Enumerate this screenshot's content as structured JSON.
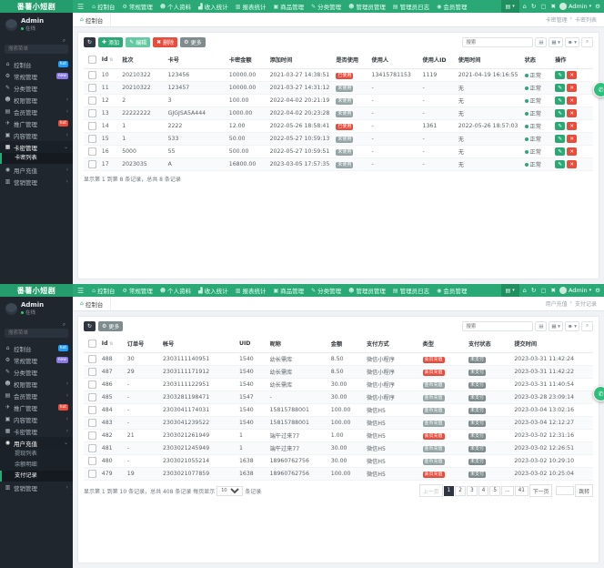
{
  "theme": {
    "primary": "#2aa876",
    "primary_dark": "#249c6c",
    "sidebar_bg": "#20262e",
    "danger": "#e74c3c",
    "muted_badge": "#95a5a6",
    "pager_active": "#2f3542"
  },
  "screens": [
    {
      "logo": "番薯小短剧",
      "float_icon": "✆",
      "navbar": {
        "menu_icon": "☰",
        "items": [
          {
            "name": "dashboard",
            "icon": "⌂",
            "label": "控制台"
          },
          {
            "name": "general",
            "icon": "⚙",
            "label": "常规管理"
          },
          {
            "name": "profile",
            "icon": "☻",
            "label": "个人资料"
          },
          {
            "name": "income",
            "icon": "▟",
            "label": "收入统计"
          },
          {
            "name": "report",
            "icon": "▥",
            "label": "报表统计"
          },
          {
            "name": "goods",
            "icon": "▣",
            "label": "商品管理"
          },
          {
            "name": "category",
            "icon": "✎",
            "label": "分类管理"
          },
          {
            "name": "admins",
            "icon": "☻",
            "label": "管理员管理"
          },
          {
            "name": "admin-log",
            "icon": "▤",
            "label": "管理员日志"
          },
          {
            "name": "members",
            "icon": "◉",
            "label": "会员管理"
          }
        ],
        "right": {
          "dropdown_icon": "▤",
          "icons": [
            {
              "name": "home",
              "glyph": "⌂"
            },
            {
              "name": "refresh",
              "glyph": "↻"
            },
            {
              "name": "fullscreen",
              "glyph": "▢"
            },
            {
              "name": "close",
              "glyph": "✖"
            }
          ],
          "user_name": "Admin",
          "settings_icon": "⚙"
        }
      },
      "sidebar": {
        "user": {
          "name": "Admin",
          "status": "在线"
        },
        "search_placeholder": "搜索菜单",
        "search_icon": "⌕",
        "items": [
          {
            "name": "dashboard",
            "icon": "⌂",
            "label": "控制台",
            "badge": "hot",
            "badge_color": "#1e9fff"
          },
          {
            "name": "general",
            "icon": "⚙",
            "label": "常规管理",
            "badge": "new",
            "badge_color": "#8c7ae6"
          },
          {
            "name": "category",
            "icon": "✎",
            "label": "分类管理"
          },
          {
            "name": "auth",
            "icon": "☻",
            "label": "权限管理",
            "chevron": true
          },
          {
            "name": "member",
            "icon": "▤",
            "label": "会员管理",
            "chevron": true
          },
          {
            "name": "promotion",
            "icon": "✈",
            "label": "推广管理",
            "badge": "hot",
            "badge_color": "#e74c3c"
          },
          {
            "name": "content",
            "icon": "▣",
            "label": "内容管理",
            "chevron": true
          },
          {
            "name": "cardkey",
            "icon": "▦",
            "label": "卡密管理",
            "chevron": true,
            "expanded": true,
            "active": true,
            "children": [
              {
                "name": "cardkey-list",
                "label": "卡密列表",
                "active": true
              }
            ]
          },
          {
            "name": "recharge",
            "icon": "◉",
            "label": "用户充值",
            "chevron": true
          },
          {
            "name": "marketing",
            "icon": "▥",
            "label": "营销管理",
            "chevron": true
          }
        ]
      },
      "tabbar": {
        "tab_icon": "⌂",
        "tab": "控制台",
        "breadcrumb": [
          "卡密管理",
          "卡密列表"
        ]
      },
      "toolbar": [
        {
          "name": "refresh",
          "icon": "↻",
          "bg": "#2f3640"
        },
        {
          "name": "add",
          "icon": "✚",
          "label": "添加",
          "bg": "#2aa876"
        },
        {
          "name": "edit",
          "icon": "✎",
          "label": "编辑",
          "bg": "#62c9a3"
        },
        {
          "name": "delete",
          "icon": "✖",
          "label": "删除",
          "bg": "#e74c3c"
        },
        {
          "name": "more",
          "icon": "⚙",
          "label": "更多",
          "bg": "#7f8c8d"
        }
      ],
      "search": {
        "placeholder": "搜索",
        "tools": [
          {
            "name": "export",
            "glyph": "▤"
          },
          {
            "name": "columns",
            "glyph": "▦ ▾"
          },
          {
            "name": "filter",
            "glyph": "☻ ▾"
          },
          {
            "name": "search",
            "glyph": "⌕"
          }
        ]
      },
      "table": {
        "actions": {
          "edit_icon": "✎",
          "delete_icon": "✕",
          "edit_color": "#2aa876",
          "delete_color": "#e74c3c"
        },
        "status_text": "正常",
        "columns": [
          {
            "key": "id",
            "label": "Id",
            "w": "4%",
            "sort": true
          },
          {
            "key": "batch",
            "label": "批次",
            "w": "9%"
          },
          {
            "key": "card_no",
            "label": "卡号",
            "w": "12%"
          },
          {
            "key": "amount",
            "label": "卡密金额",
            "w": "8%"
          },
          {
            "key": "created",
            "label": "添加时间",
            "w": "13%"
          },
          {
            "key": "used",
            "label": "是否使用",
            "type": "badge",
            "colors": {
              "已使用": "#e74c3c",
              "未使用": "#95a5a6"
            },
            "w": "7%"
          },
          {
            "key": "user",
            "label": "使用人",
            "w": "10%"
          },
          {
            "key": "user_id",
            "label": "使用人ID",
            "w": "7%"
          },
          {
            "key": "used_time",
            "label": "使用时间",
            "w": "13%"
          },
          {
            "key": "status",
            "label": "状态",
            "type": "status",
            "w": "6%"
          },
          {
            "key": "actions",
            "label": "操作",
            "type": "actions",
            "w": "8%"
          }
        ],
        "rows": [
          {
            "id": "10",
            "batch": "20210322",
            "card_no": "123456",
            "amount": "10000.00",
            "created": "2021-03-27 14:38:51",
            "used": "已使用",
            "user": "13415781153",
            "user_id": "1119",
            "used_time": "2021-04-19 16:16:55",
            "status": "正常"
          },
          {
            "id": "11",
            "batch": "20210322",
            "card_no": "123457",
            "amount": "10000.00",
            "created": "2021-03-27 14:31:12",
            "used": "未使用",
            "user": "-",
            "user_id": "-",
            "used_time": "无",
            "status": "正常"
          },
          {
            "id": "12",
            "batch": "2",
            "card_no": "3",
            "amount": "100.00",
            "created": "2022-04-02 20:21:19",
            "used": "未使用",
            "user": "-",
            "user_id": "-",
            "used_time": "无",
            "status": "正常"
          },
          {
            "id": "13",
            "batch": "22222222",
            "card_no": "GJGJSA5A444",
            "amount": "1000.00",
            "created": "2022-04-02 20:23:28",
            "used": "未使用",
            "user": "-",
            "user_id": "-",
            "used_time": "无",
            "status": "正常"
          },
          {
            "id": "14",
            "batch": "1",
            "card_no": "2222",
            "amount": "12.00",
            "created": "2022-05-26 18:58:41",
            "used": "已使用",
            "user": "-",
            "user_id": "1361",
            "used_time": "2022-05-26 18:57:03",
            "status": "正常"
          },
          {
            "id": "15",
            "batch": "1",
            "card_no": "533",
            "amount": "50.00",
            "created": "2022-05-27 10:59:13",
            "used": "未使用",
            "user": "-",
            "user_id": "-",
            "used_time": "无",
            "status": "正常"
          },
          {
            "id": "16",
            "batch": "5000",
            "card_no": "55",
            "amount": "500.00",
            "created": "2022-05-27 10:59:51",
            "used": "未使用",
            "user": "-",
            "user_id": "-",
            "used_time": "无",
            "status": "正常"
          },
          {
            "id": "17",
            "batch": "2023035",
            "card_no": "A",
            "amount": "16800.00",
            "created": "2023-03-05 17:57:35",
            "used": "未使用",
            "user": "-",
            "user_id": "-",
            "used_time": "无",
            "status": "正常"
          }
        ]
      },
      "footer": {
        "summary": "显示第 1 到第 8 条记录，总共 8 条记录"
      },
      "pagination": null
    },
    {
      "logo": "番薯小短剧",
      "float_icon": "✆",
      "navbar": {
        "menu_icon": "☰",
        "items": [
          {
            "name": "dashboard",
            "icon": "⌂",
            "label": "控制台"
          },
          {
            "name": "general",
            "icon": "⚙",
            "label": "常规管理"
          },
          {
            "name": "profile",
            "icon": "☻",
            "label": "个人资料"
          },
          {
            "name": "income",
            "icon": "▟",
            "label": "收入统计"
          },
          {
            "name": "report",
            "icon": "▥",
            "label": "报表统计"
          },
          {
            "name": "goods",
            "icon": "▣",
            "label": "商品管理"
          },
          {
            "name": "category",
            "icon": "✎",
            "label": "分类管理"
          },
          {
            "name": "admins",
            "icon": "☻",
            "label": "管理员管理"
          },
          {
            "name": "admin-log",
            "icon": "▤",
            "label": "管理员日志"
          },
          {
            "name": "members",
            "icon": "◉",
            "label": "会员管理"
          }
        ],
        "right": {
          "dropdown_icon": "▤",
          "icons": [
            {
              "name": "home",
              "glyph": "⌂"
            },
            {
              "name": "refresh",
              "glyph": "↻"
            },
            {
              "name": "fullscreen",
              "glyph": "▢"
            },
            {
              "name": "close",
              "glyph": "✖"
            }
          ],
          "user_name": "Admin",
          "settings_icon": "⚙"
        }
      },
      "sidebar": {
        "user": {
          "name": "Admin",
          "status": "在线"
        },
        "search_placeholder": "搜索菜单",
        "search_icon": "⌕",
        "items": [
          {
            "name": "dashboard",
            "icon": "⌂",
            "label": "控制台",
            "badge": "hot",
            "badge_color": "#1e9fff"
          },
          {
            "name": "general",
            "icon": "⚙",
            "label": "常规管理",
            "badge": "new",
            "badge_color": "#8c7ae6"
          },
          {
            "name": "category",
            "icon": "✎",
            "label": "分类管理"
          },
          {
            "name": "auth",
            "icon": "☻",
            "label": "权限管理",
            "chevron": true
          },
          {
            "name": "member",
            "icon": "▤",
            "label": "会员管理",
            "chevron": true
          },
          {
            "name": "promotion",
            "icon": "✈",
            "label": "推广管理",
            "badge": "hot",
            "badge_color": "#e74c3c"
          },
          {
            "name": "content",
            "icon": "▣",
            "label": "内容管理",
            "chevron": true
          },
          {
            "name": "cardkey",
            "icon": "▦",
            "label": "卡密管理",
            "chevron": true
          },
          {
            "name": "recharge",
            "icon": "◉",
            "label": "用户充值",
            "chevron": true,
            "expanded": true,
            "active": true,
            "children": [
              {
                "name": "withdraw-list",
                "label": "提现列表"
              },
              {
                "name": "balance-detail",
                "label": "余额明细"
              },
              {
                "name": "pay-records",
                "label": "支付记录",
                "active": true
              }
            ]
          },
          {
            "name": "marketing",
            "icon": "▥",
            "label": "营销管理",
            "chevron": true
          }
        ]
      },
      "tabbar": {
        "tab_icon": "⌂",
        "tab": "控制台",
        "breadcrumb": [
          "用户充值",
          "支付记录"
        ]
      },
      "toolbar": [
        {
          "name": "refresh",
          "icon": "↻",
          "bg": "#2f3640"
        },
        {
          "name": "more",
          "icon": "⚙",
          "label": "更多",
          "bg": "#7f8c8d"
        }
      ],
      "search": {
        "placeholder": "搜索",
        "tools": [
          {
            "name": "export",
            "glyph": "▤"
          },
          {
            "name": "columns",
            "glyph": "▦ ▾"
          },
          {
            "name": "filter",
            "glyph": "☻ ▾"
          },
          {
            "name": "search",
            "glyph": "⌕"
          }
        ]
      },
      "table": {
        "actions": {
          "edit_icon": "✎",
          "delete_icon": "✕",
          "edit_color": "#2aa876",
          "delete_color": "#e74c3c"
        },
        "status_text": "正常",
        "columns": [
          {
            "key": "id",
            "label": "Id",
            "w": "5%",
            "sort": true
          },
          {
            "key": "order_no",
            "label": "订单号",
            "w": "7%"
          },
          {
            "key": "account",
            "label": "帐号",
            "w": "15%"
          },
          {
            "key": "uid",
            "label": "UID",
            "w": "6%"
          },
          {
            "key": "nickname",
            "label": "昵称",
            "w": "12%"
          },
          {
            "key": "amount",
            "label": "金额",
            "w": "7%"
          },
          {
            "key": "pay_method",
            "label": "支付方式",
            "w": "11%"
          },
          {
            "key": "type",
            "label": "类型",
            "type": "badge",
            "colors": {
              "会员充值": "#e74c3c",
              "金币充值": "#95a5a6"
            },
            "w": "9%"
          },
          {
            "key": "pay_status",
            "label": "支付状态",
            "type": "badge",
            "colors": {
              "未支付": "#7f8c8d"
            },
            "w": "9%"
          },
          {
            "key": "submitted",
            "label": "提交时间",
            "w": "16%"
          }
        ],
        "rows": [
          {
            "id": "488",
            "order_no": "30",
            "account": "2303111140951",
            "uid": "1540",
            "nickname": "幼长需库",
            "amount": "8.50",
            "pay_method": "微信小程序",
            "type": "会员充值",
            "pay_status": "未支付",
            "submitted": "2023-03-31 11:42:24"
          },
          {
            "id": "487",
            "order_no": "29",
            "account": "2303111171912",
            "uid": "1540",
            "nickname": "幼长需库",
            "amount": "8.50",
            "pay_method": "微信小程序",
            "type": "会员充值",
            "pay_status": "未支付",
            "submitted": "2023-03-31 11:42:22"
          },
          {
            "id": "486",
            "order_no": "-",
            "account": "2303111122951",
            "uid": "1540",
            "nickname": "幼长需库",
            "amount": "30.00",
            "pay_method": "微信小程序",
            "type": "金币充值",
            "pay_status": "未支付",
            "submitted": "2023-03-31 11:40:54"
          },
          {
            "id": "485",
            "order_no": "-",
            "account": "2303281198471",
            "uid": "1547",
            "nickname": "-",
            "amount": "30.00",
            "pay_method": "微信小程序",
            "type": "金币充值",
            "pay_status": "未支付",
            "submitted": "2023-03-28 23:09:14"
          },
          {
            "id": "484",
            "order_no": "-",
            "account": "2303041174031",
            "uid": "1540",
            "nickname": "15815788001",
            "amount": "100.00",
            "pay_method": "微信H5",
            "type": "金币充值",
            "pay_status": "未支付",
            "submitted": "2023-03-04 13:02:16"
          },
          {
            "id": "483",
            "order_no": "-",
            "account": "2303041239522",
            "uid": "1540",
            "nickname": "15815788001",
            "amount": "100.00",
            "pay_method": "微信H5",
            "type": "金币充值",
            "pay_status": "未支付",
            "submitted": "2023-03-04 12:12:27"
          },
          {
            "id": "482",
            "order_no": "21",
            "account": "2303021261949",
            "uid": "1",
            "nickname": "端午过来77",
            "amount": "1.00",
            "pay_method": "微信H5",
            "type": "会员充值",
            "pay_status": "未支付",
            "submitted": "2023-03-02 12:31:16"
          },
          {
            "id": "481",
            "order_no": "-",
            "account": "2303021245949",
            "uid": "1",
            "nickname": "端午过来77",
            "amount": "30.00",
            "pay_method": "微信H5",
            "type": "金币充值",
            "pay_status": "未支付",
            "submitted": "2023-03-02 12:26:51"
          },
          {
            "id": "480",
            "order_no": "-",
            "account": "2303021055214",
            "uid": "1638",
            "nickname": "18960762756",
            "amount": "30.00",
            "pay_method": "微信H5",
            "type": "金币充值",
            "pay_status": "未支付",
            "submitted": "2023-03-02 10:29:10"
          },
          {
            "id": "479",
            "order_no": "19",
            "account": "2303021077859",
            "uid": "1638",
            "nickname": "18960762756",
            "amount": "100.00",
            "pay_method": "微信H5",
            "type": "会员充值",
            "pay_status": "未支付",
            "submitted": "2023-03-02 10:25:04"
          }
        ]
      },
      "footer": {
        "summary": "显示第 1 到第 10 条记录，总共 408 条记录 每页显示",
        "page_size": "10",
        "suffix": "条记录"
      },
      "pagination": {
        "prev": "上一页",
        "next": "下一页",
        "pages": [
          "1",
          "2",
          "3",
          "4",
          "5",
          "...",
          "41"
        ],
        "active": "1",
        "jump_label": "跳转"
      }
    }
  ]
}
